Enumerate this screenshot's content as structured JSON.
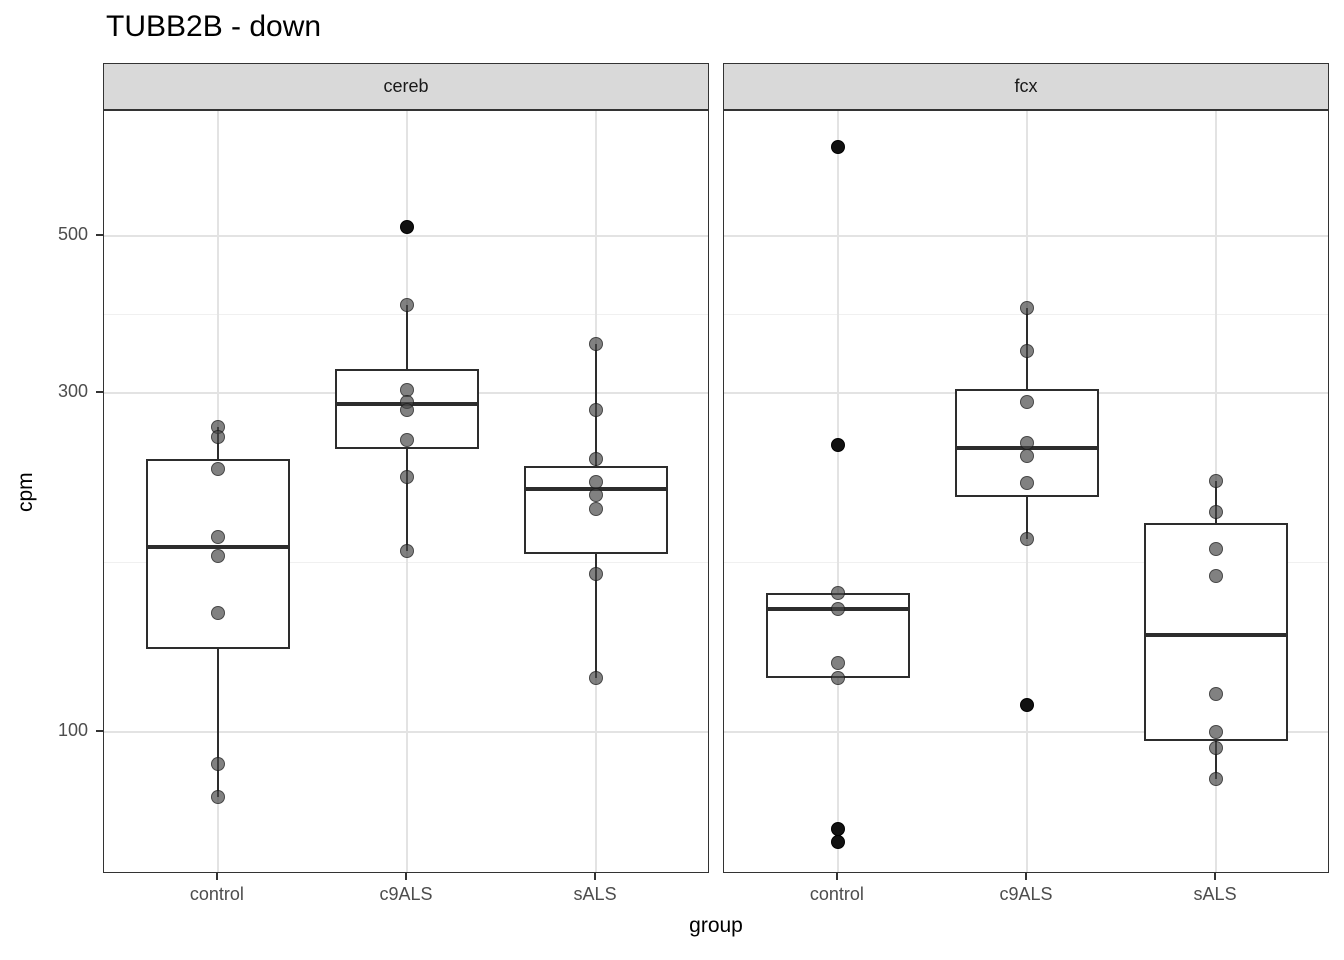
{
  "title": "TUBB2B - down",
  "x_axis": {
    "label": "group",
    "tick_labels": [
      "control",
      "c9ALS",
      "sALS"
    ]
  },
  "y_axis": {
    "label": "cpm",
    "tick_labels": [
      "500",
      "300",
      "100"
    ]
  },
  "facet_labels": [
    "cereb",
    "fcx"
  ],
  "colors": {
    "strip_fill": "#d9d9d9",
    "panel_border": "#333333",
    "gridline_major": "#e3e3e3",
    "gridline_minor": "#f0f0f0",
    "box_stroke": "#2d2d2d",
    "point_grey": "rgba(70,70,70,0.68)",
    "point_dark": "#111111",
    "tick_label": "#4d4d4d"
  },
  "chart_data": {
    "type": "boxplot",
    "scale": "log10",
    "title": "TUBB2B - down",
    "xlabel": "group",
    "ylabel": "cpm",
    "ylim": [
      63,
      749
    ],
    "y_ticks": [
      500,
      300,
      100
    ],
    "y_minor_gridlines": [
      387,
      173
    ],
    "categories": [
      "control",
      "c9ALS",
      "sALS"
    ],
    "legend": "none",
    "facets": [
      {
        "label": "cereb",
        "groups": [
          {
            "category": "control",
            "box": {
              "q1": 131,
              "median": 182,
              "q3": 242,
              "whisker_low": 81,
              "whisker_high": 269
            },
            "points": [
              269,
              260,
              235,
              188,
              177,
              147,
              90,
              81
            ],
            "outliers": []
          },
          {
            "category": "c9ALS",
            "box": {
              "q1": 250,
              "median": 290,
              "q3": 325,
              "whisker_low": 180,
              "whisker_high": 400
            },
            "points": [
              400,
              303,
              292,
              284,
              258,
              229,
              180
            ],
            "outliers": [
              515
            ]
          },
          {
            "category": "sALS",
            "box": {
              "q1": 178,
              "median": 220,
              "q3": 237,
              "whisker_low": 119,
              "whisker_high": 352
            },
            "points": [
              352,
              284,
              242,
              225,
              216,
              206,
              167,
              119
            ],
            "outliers": []
          }
        ]
      },
      {
        "label": "fcx",
        "groups": [
          {
            "category": "control",
            "box": {
              "q1": 119,
              "median": 149,
              "q3": 157,
              "whisker_low": 119,
              "whisker_high": 157
            },
            "points": [
              157,
              149,
              125,
              119
            ],
            "outliers": [
              666,
              254,
              73,
              70
            ]
          },
          {
            "category": "c9ALS",
            "box": {
              "q1": 214,
              "median": 251,
              "q3": 304,
              "whisker_low": 187,
              "whisker_high": 395
            },
            "points": [
              395,
              344,
              292,
              255,
              245,
              224,
              187
            ],
            "outliers": [
              109
            ]
          },
          {
            "category": "sALS",
            "box": {
              "q1": 97,
              "median": 137,
              "q3": 197,
              "whisker_low": 86,
              "whisker_high": 226
            },
            "points": [
              226,
              204,
              181,
              166,
              113,
              100,
              95,
              86
            ],
            "outliers": []
          }
        ]
      }
    ]
  }
}
